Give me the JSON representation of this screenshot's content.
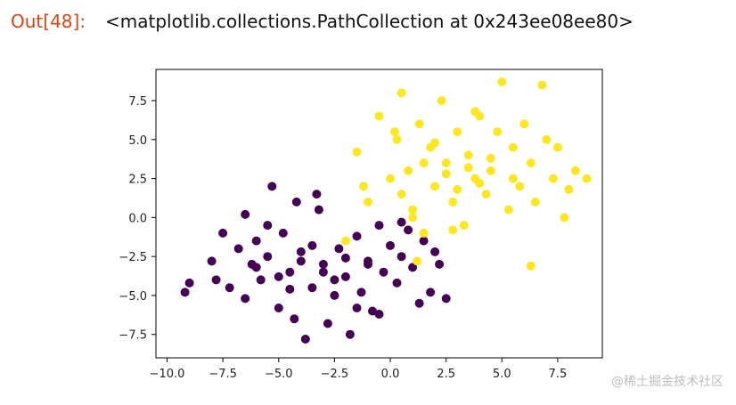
{
  "cell": {
    "prompt": "Out[48]:",
    "output": "<matplotlib.collections.PathCollection at 0x243ee08ee80>"
  },
  "watermark": "@稀土掘金技术社区",
  "chart_data": {
    "type": "scatter",
    "xlim": [
      -10.5,
      9.5
    ],
    "ylim": [
      -9,
      9.5
    ],
    "x_ticks": [
      -10.0,
      -7.5,
      -5.0,
      -2.5,
      0.0,
      2.5,
      5.0,
      7.5
    ],
    "y_ticks": [
      -7.5,
      -5.0,
      -2.5,
      0.0,
      2.5,
      5.0,
      7.5
    ],
    "x_tick_labels": [
      "−10.0",
      "−7.5",
      "−5.0",
      "−2.5",
      "0.0",
      "2.5",
      "5.0",
      "7.5"
    ],
    "y_tick_labels": [
      "−7.5",
      "−5.0",
      "−2.5",
      "0.0",
      "2.5",
      "5.0",
      "7.5"
    ],
    "grid": false,
    "series": [
      {
        "color": "#440154",
        "cluster_center": [
          -3,
          -3
        ],
        "x": [
          -9.2,
          -9.0,
          -8.0,
          -7.8,
          -7.5,
          -7.2,
          -6.8,
          -6.5,
          -6.2,
          -6.0,
          -5.8,
          -5.5,
          -5.3,
          -5.0,
          -4.8,
          -4.5,
          -4.3,
          -4.0,
          -3.8,
          -3.5,
          -3.3,
          -3.0,
          -2.8,
          -2.5,
          -2.3,
          -2.0,
          -1.8,
          -1.5,
          -1.3,
          -1.0,
          -0.8,
          -0.5,
          -0.3,
          0.0,
          0.3,
          0.5,
          0.8,
          1.0,
          1.3,
          1.5,
          1.8,
          2.0,
          2.2,
          2.5,
          -6.0,
          -5.0,
          -4.0,
          -3.0,
          -2.0,
          -1.0,
          -4.5,
          -3.5,
          -2.5,
          -5.5,
          -6.5,
          -1.5,
          -0.5,
          0.5,
          -3.2,
          -4.2
        ],
        "y": [
          -4.8,
          -4.2,
          -2.8,
          -4.0,
          -1.0,
          -4.5,
          -2.0,
          -5.2,
          -3.0,
          -1.5,
          -4.0,
          -2.5,
          2.0,
          -5.8,
          -1.0,
          -3.5,
          -6.5,
          -2.2,
          -7.8,
          -4.5,
          1.5,
          -3.0,
          -6.8,
          -5.0,
          -2.0,
          -3.8,
          -7.5,
          -1.2,
          -4.8,
          -2.8,
          -6.0,
          -0.5,
          -3.5,
          -1.8,
          -4.2,
          -2.5,
          -0.8,
          -3.2,
          -5.5,
          -1.5,
          -4.8,
          -2.2,
          -3.0,
          -5.2,
          -3.2,
          -3.8,
          -2.8,
          -3.5,
          -2.6,
          -3.0,
          -4.6,
          -1.8,
          -4.0,
          -0.5,
          0.2,
          -5.8,
          -6.2,
          -0.3,
          0.5,
          1.0
        ]
      },
      {
        "color": "#fde725",
        "cluster_center": [
          3,
          3
        ],
        "x": [
          -2.0,
          -1.5,
          -1.0,
          -0.5,
          0.0,
          0.3,
          0.5,
          0.8,
          1.0,
          1.3,
          1.5,
          1.8,
          2.0,
          2.3,
          2.5,
          2.8,
          3.0,
          3.3,
          3.5,
          3.8,
          4.0,
          4.3,
          4.5,
          4.8,
          5.0,
          5.3,
          5.5,
          5.8,
          6.0,
          6.3,
          6.5,
          6.8,
          7.0,
          7.3,
          7.5,
          7.8,
          8.0,
          8.3,
          8.8,
          0.5,
          1.5,
          2.5,
          3.5,
          4.5,
          5.5,
          2.0,
          3.0,
          4.0,
          1.0,
          6.3,
          1.2,
          -1.2,
          0.2,
          3.8,
          2.8
        ],
        "y": [
          -1.5,
          4.2,
          1.0,
          6.5,
          2.5,
          5.0,
          8.0,
          3.0,
          0.5,
          6.0,
          -1.0,
          4.5,
          2.0,
          7.5,
          3.5,
          1.0,
          5.5,
          -0.5,
          4.0,
          2.5,
          6.5,
          1.5,
          3.0,
          5.5,
          8.7,
          0.5,
          4.5,
          2.0,
          6.0,
          3.5,
          1.0,
          8.5,
          5.0,
          2.5,
          4.5,
          0.0,
          1.8,
          3.0,
          2.5,
          1.5,
          3.5,
          2.8,
          3.2,
          3.8,
          2.5,
          4.8,
          1.8,
          2.2,
          0.0,
          -3.1,
          -2.8,
          2.0,
          5.5,
          6.8,
          -0.8
        ]
      }
    ]
  }
}
